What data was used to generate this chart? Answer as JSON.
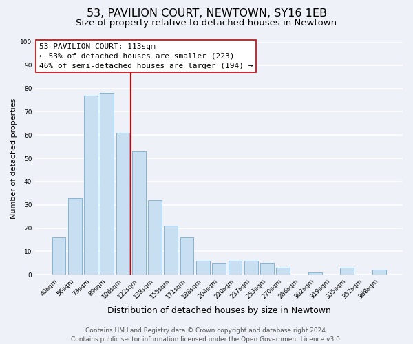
{
  "title": "53, PAVILION COURT, NEWTOWN, SY16 1EB",
  "subtitle": "Size of property relative to detached houses in Newtown",
  "xlabel": "Distribution of detached houses by size in Newtown",
  "ylabel": "Number of detached properties",
  "bar_labels": [
    "40sqm",
    "56sqm",
    "73sqm",
    "89sqm",
    "106sqm",
    "122sqm",
    "138sqm",
    "155sqm",
    "171sqm",
    "188sqm",
    "204sqm",
    "220sqm",
    "237sqm",
    "253sqm",
    "270sqm",
    "286sqm",
    "302sqm",
    "319sqm",
    "335sqm",
    "352sqm",
    "368sqm"
  ],
  "bar_values": [
    16,
    33,
    77,
    78,
    61,
    53,
    32,
    21,
    16,
    6,
    5,
    6,
    6,
    5,
    3,
    0,
    1,
    0,
    3,
    0,
    2
  ],
  "bar_color": "#c8dff2",
  "bar_edge_color": "#82b5d8",
  "vline_color": "#cc0000",
  "annotation_title": "53 PAVILION COURT: 113sqm",
  "annotation_line1": "← 53% of detached houses are smaller (223)",
  "annotation_line2": "46% of semi-detached houses are larger (194) →",
  "annotation_box_color": "#ffffff",
  "annotation_box_edge": "#cc0000",
  "ylim": [
    0,
    100
  ],
  "yticks": [
    0,
    10,
    20,
    30,
    40,
    50,
    60,
    70,
    80,
    90,
    100
  ],
  "footer_line1": "Contains HM Land Registry data © Crown copyright and database right 2024.",
  "footer_line2": "Contains public sector information licensed under the Open Government Licence v3.0.",
  "background_color": "#eef2f8",
  "grid_color": "#ffffff",
  "title_fontsize": 11.5,
  "subtitle_fontsize": 9.5,
  "ylabel_fontsize": 8,
  "xlabel_fontsize": 9,
  "tick_fontsize": 6.5,
  "annotation_fontsize": 8,
  "footer_fontsize": 6.5
}
